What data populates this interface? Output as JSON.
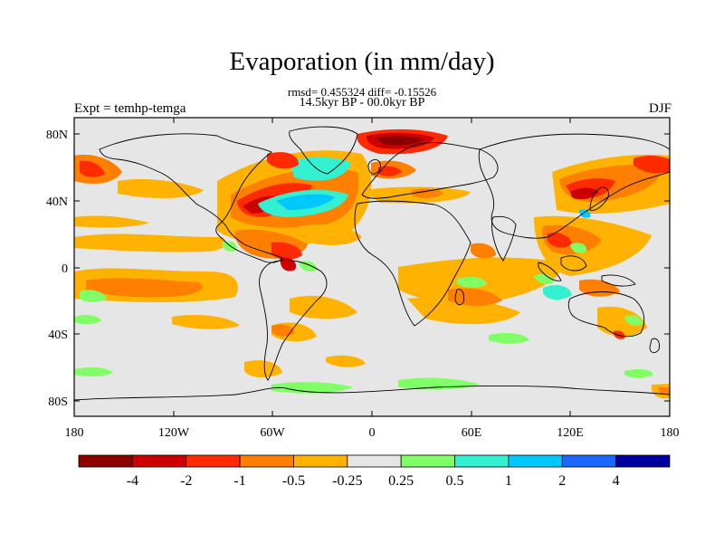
{
  "title": "Evaporation (in mm/day)",
  "stats_line": "rmsd= 0.455324 diff= -0.15526",
  "period_line": "14.5kyr BP - 00.0kyr BP",
  "experiment_label": "Expt = temhp-temga",
  "season_label": "DJF",
  "lat_ticks": [
    "80N",
    "40N",
    "0",
    "40S",
    "80S"
  ],
  "lon_ticks": [
    "180",
    "120W",
    "60W",
    "0",
    "60E",
    "120E",
    "180"
  ],
  "colorbar": {
    "colors": [
      "#8c0000",
      "#cc0000",
      "#ff2a00",
      "#ff7f00",
      "#ffb300",
      "#e6e6e6",
      "#80ff66",
      "#33f0d0",
      "#00c8ff",
      "#1a66ff",
      "#0000a0"
    ],
    "labels": [
      "-4",
      "-2",
      "-1",
      "-0.5",
      "-0.25",
      "0.25",
      "0.5",
      "1",
      "2",
      "4"
    ]
  },
  "field_colors": {
    "background": "#e6e6e6",
    "dark_red": "#8c0000",
    "red": "#cc0000",
    "red_orange": "#ff2a00",
    "orange": "#ff7f00",
    "light_orange": "#ffb300",
    "green": "#80ff66",
    "cyan": "#33f0d0",
    "light_blue": "#00c8ff"
  }
}
